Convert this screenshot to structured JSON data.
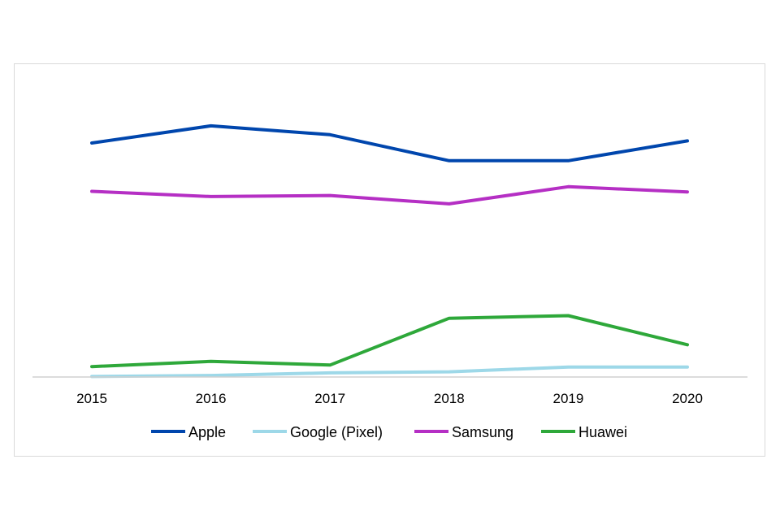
{
  "chart_data": {
    "type": "line",
    "title": "",
    "xlabel": "",
    "ylabel": "",
    "categories": [
      "2015",
      "2016",
      "2017",
      "2018",
      "2019",
      "2020"
    ],
    "ylim": [
      0,
      60
    ],
    "grid": false,
    "legend_position": "bottom",
    "series": [
      {
        "name": "Apple",
        "color": "#0046ad",
        "values": [
          45,
          48.3,
          46.6,
          41.6,
          41.6,
          45.4
        ]
      },
      {
        "name": "Google (Pixel)",
        "color": "#9dd8e8",
        "values": [
          0.1,
          0.3,
          0.8,
          1.0,
          1.9,
          1.9
        ]
      },
      {
        "name": "Samsung",
        "color": "#b52fc4",
        "values": [
          35.7,
          34.7,
          34.9,
          33.3,
          36.6,
          35.6
        ]
      },
      {
        "name": "Huawei",
        "color": "#2ea83a",
        "values": [
          2.0,
          3.0,
          2.3,
          11.3,
          11.8,
          6.2
        ]
      }
    ]
  }
}
